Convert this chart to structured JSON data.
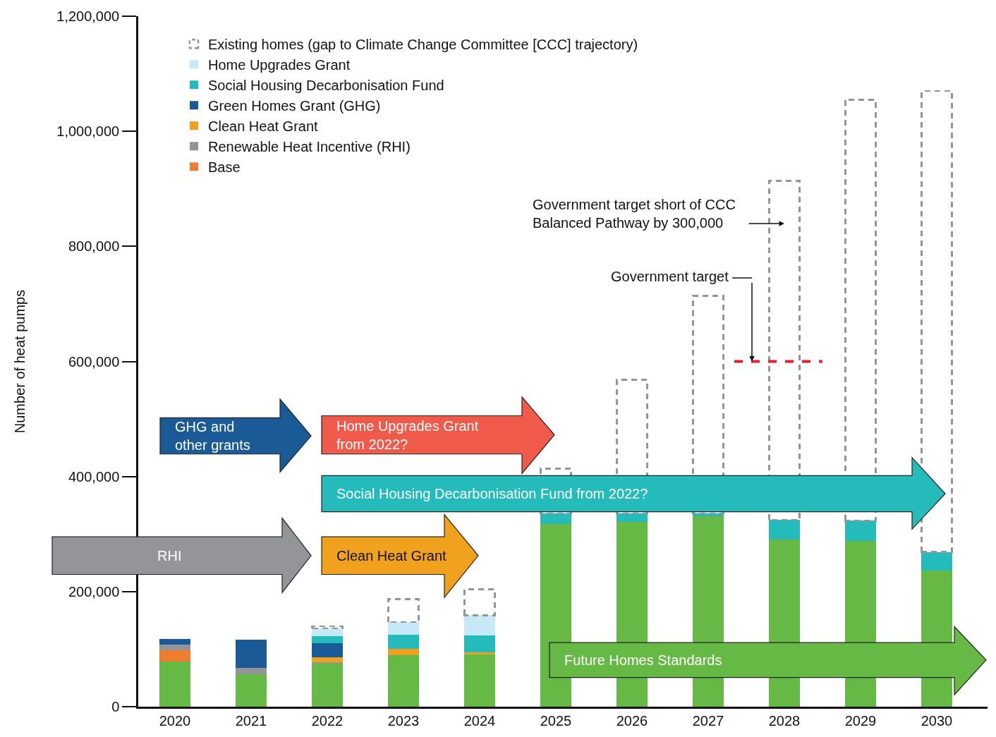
{
  "chart_data": {
    "type": "bar",
    "stacked": true,
    "ylabel": "Number of heat pumps",
    "categories": [
      "2020",
      "2021",
      "2022",
      "2023",
      "2024",
      "2025",
      "2026",
      "2027",
      "2028",
      "2029",
      "2030"
    ],
    "series": [
      {
        "color": "#67b946",
        "values": [
          78000,
          56000,
          75000,
          89000,
          91000,
          318000,
          321000,
          331000,
          290000,
          288000,
          236000
        ]
      },
      {
        "name": "Base",
        "color": "#ee7d31",
        "values": [
          20000,
          null,
          null,
          null,
          null,
          null,
          null,
          null,
          null,
          null,
          null
        ]
      },
      {
        "name": "Renewable Heat Incentive (RHI)",
        "color": "#939598",
        "values": [
          10000,
          11000,
          2000,
          null,
          null,
          null,
          null,
          null,
          null,
          null,
          null
        ]
      },
      {
        "name": "Clean Heat Grant",
        "color": "#f0a21f",
        "values": [
          null,
          null,
          9000,
          12000,
          3000,
          null,
          null,
          null,
          null,
          null,
          null
        ]
      },
      {
        "name": "Green Homes Grant (GHG)",
        "color": "#1a5a96",
        "values": [
          10000,
          50000,
          24000,
          null,
          null,
          null,
          null,
          null,
          null,
          null,
          null
        ]
      },
      {
        "name": "Social Housing Decarbonisation Fund",
        "color": "#25bbbb",
        "values": [
          null,
          null,
          12000,
          24000,
          30000,
          18000,
          15000,
          5000,
          35000,
          35000,
          33000
        ]
      },
      {
        "name": "Home Upgrades Grant",
        "color": "#c6e9f7",
        "values": [
          null,
          null,
          14000,
          22000,
          35000,
          null,
          null,
          null,
          null,
          null,
          null
        ]
      },
      {
        "name": "Existing homes (gap to Climate Change Committee [CCC] trajectory)",
        "color": "#939598",
        "line_style": "dashed",
        "values": [
          null,
          null,
          4000,
          40000,
          45000,
          78000,
          232000,
          378000,
          589000,
          732000,
          801000
        ]
      }
    ],
    "ylim": [
      0,
      1200000
    ],
    "yticks": [
      0,
      {
        "value": 200000,
        "label": "200,000"
      },
      {
        "value": 400000,
        "label": "400,000"
      },
      {
        "value": 600000,
        "label": "600,000"
      },
      {
        "value": 800000,
        "label": "800,000"
      },
      {
        "value": 1000000,
        "label": "1,000,000"
      },
      {
        "value": 1200000,
        "label": "1,200,000"
      }
    ],
    "ref_lines": [
      {
        "axis": "y",
        "value": 600000,
        "color": "#ee1c25",
        "line_style": "dashed"
      }
    ],
    "annotations": [
      "Government target short of CCC\nBalanced Pathway by 300,000",
      "GHG and\nother grants",
      "Home Upgrades Grant\nfrom 2022?",
      "Social Housing Decarbonisation Fund from 2022?",
      "RHI",
      "Clean Heat Grant",
      "Future Homes Standards",
      "Government target"
    ],
    "legend": "top left"
  }
}
